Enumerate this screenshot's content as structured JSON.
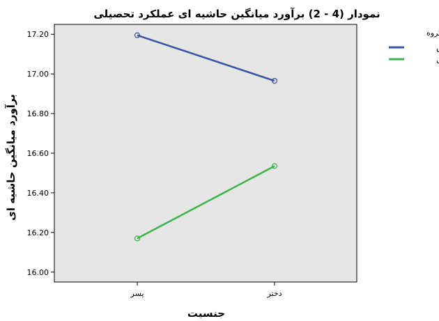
{
  "chart_data": {
    "type": "line",
    "title": "نمودار (4 - 2) برآورد میانگین حاشیه ای عملکرد تحصیلی",
    "xlabel": "جنسیت",
    "ylabel": "برآورد میانگین حاشیه ای",
    "categories": [
      "پسر",
      "دختر"
    ],
    "ylim": [
      15.95,
      17.25
    ],
    "yticks": [
      16.0,
      16.2,
      16.4,
      16.6,
      16.8,
      17.0,
      17.2
    ],
    "ytick_labels": [
      "16.00",
      "16.20",
      "16.40",
      "16.60",
      "16.80",
      "17.00",
      "17.20"
    ],
    "legend_title": "گروه",
    "legend_position": "top-right outside",
    "plot_background": "#e6e6e6",
    "grid": false,
    "series": [
      {
        "name": "آزمایش",
        "values": [
          17.195,
          16.965
        ],
        "color": "#3a53a4"
      },
      {
        "name": "کنترل",
        "values": [
          16.17,
          16.535
        ],
        "color": "#3bb54a"
      }
    ]
  }
}
